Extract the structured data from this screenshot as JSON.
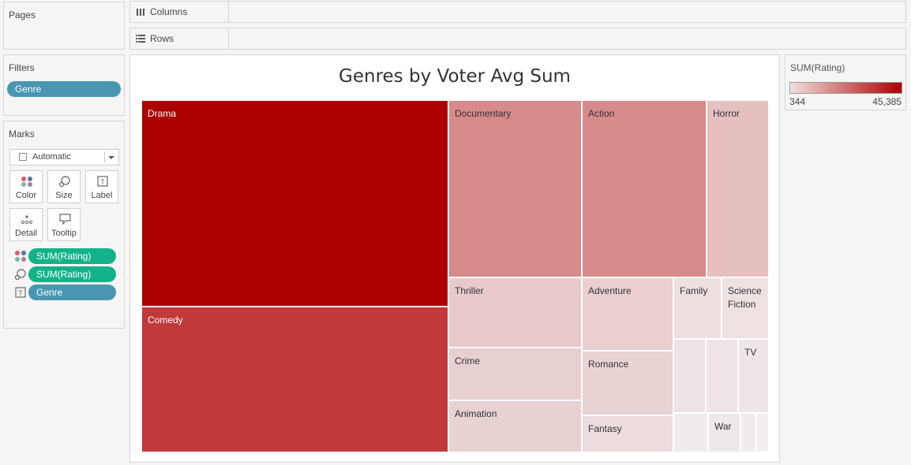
{
  "pages": {
    "title": "Pages"
  },
  "filters": {
    "title": "Filters",
    "pills": [
      {
        "label": "Genre"
      }
    ]
  },
  "marks": {
    "title": "Marks",
    "mark_type": "Automatic",
    "buttons": [
      {
        "label": "Color",
        "icon": "color-icon"
      },
      {
        "label": "Size",
        "icon": "size-icon"
      },
      {
        "label": "Label",
        "icon": "label-icon"
      },
      {
        "label": "Detail",
        "icon": "detail-icon"
      },
      {
        "label": "Tooltip",
        "icon": "tooltip-icon"
      }
    ],
    "fields": [
      {
        "label": "SUM(Rating)",
        "icon": "color-icon",
        "color": "#13b289"
      },
      {
        "label": "SUM(Rating)",
        "icon": "size-icon",
        "color": "#13b289"
      },
      {
        "label": "Genre",
        "icon": "label-icon",
        "color": "#4996b2"
      }
    ]
  },
  "shelves": {
    "columns": "Columns",
    "rows": "Rows"
  },
  "viz": {
    "title": "Genres by Voter Avg Sum"
  },
  "legend": {
    "title": "SUM(Rating)",
    "min": "344",
    "max": "45,385",
    "color_low": "#f3dede",
    "color_high": "#aa0000"
  },
  "chart_data": {
    "type": "treemap",
    "title": "Genres by Voter Avg Sum",
    "color_measure": "SUM(Rating)",
    "size_measure": "SUM(Rating)",
    "color_range": [
      344,
      45385
    ],
    "tiles": [
      {
        "label": "Drama",
        "color": "#aa0000"
      },
      {
        "label": "Comedy",
        "color": "#c1393b"
      },
      {
        "label": "Documentary",
        "color": "#d88989"
      },
      {
        "label": "Action",
        "color": "#d88a8b"
      },
      {
        "label": "Horror",
        "color": "#e6c0c1"
      },
      {
        "label": "Thriller",
        "color": "#e8cacb"
      },
      {
        "label": "Crime",
        "color": "#e8cfd0"
      },
      {
        "label": "Animation",
        "color": "#e8d1d1"
      },
      {
        "label": "Adventure",
        "color": "#eacfd0"
      },
      {
        "label": "Romance",
        "color": "#ead3d3"
      },
      {
        "label": "Fantasy",
        "color": "#ecdcdd"
      },
      {
        "label": "Family",
        "color": "#ede0e1"
      },
      {
        "label": "Science Fiction",
        "color": "#eee1e2"
      },
      {
        "label": "",
        "color": "#eee3e4"
      },
      {
        "label": "",
        "color": "#efe5e6"
      },
      {
        "label": "TV",
        "color": "#efe6e7"
      },
      {
        "label": "",
        "color": "#f1ebec"
      },
      {
        "label": "War",
        "color": "#efe8e9"
      },
      {
        "label": "",
        "color": "#f1ecec"
      },
      {
        "label": "",
        "color": "#f2eeee"
      }
    ]
  }
}
